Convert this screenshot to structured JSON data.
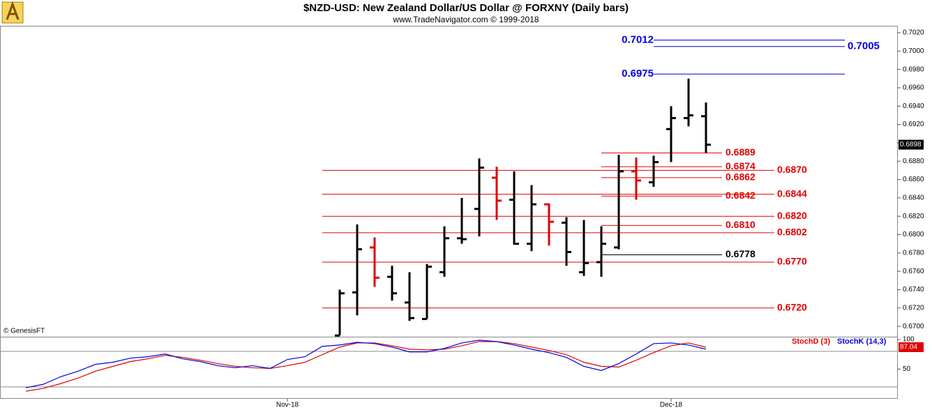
{
  "chart_data": [
    {
      "type": "ohlc",
      "title": "$NZD-USD:  New Zealand Dollar/US Dollar @ FORXNY  (Daily bars)",
      "subtitle": "www.TradeNavigator.com © 1999-2018",
      "credit": "© GenesisFT",
      "categories": [
        null,
        null,
        null,
        null,
        null,
        null,
        null,
        null,
        null,
        null,
        null,
        null,
        null,
        null,
        null,
        null,
        "Nov-18",
        null,
        null,
        null,
        null,
        null,
        null,
        null,
        null,
        null,
        null,
        null,
        null,
        null,
        null,
        null,
        null,
        null,
        null,
        null,
        null,
        null,
        "Dec-18",
        null,
        null,
        null,
        null,
        null,
        null,
        null,
        null,
        null,
        null,
        null,
        null
      ],
      "open": [
        null,
        null,
        null,
        null,
        null,
        null,
        null,
        null,
        null,
        null,
        null,
        null,
        null,
        null,
        null,
        null,
        null,
        null,
        null,
        0.669,
        0.6737,
        0.6786,
        0.6754,
        0.6726,
        0.6708,
        0.6759,
        0.6796,
        0.6828,
        0.6862,
        0.6838,
        0.679,
        0.6833,
        0.6813,
        0.6759,
        0.677,
        0.6786,
        0.6869,
        0.6857,
        0.6915,
        0.6927,
        0.6929,
        null,
        null,
        null,
        null,
        null,
        null,
        null,
        null,
        null,
        null
      ],
      "high": [
        null,
        null,
        null,
        null,
        null,
        null,
        null,
        null,
        null,
        null,
        null,
        null,
        null,
        null,
        null,
        null,
        null,
        null,
        null,
        0.674,
        0.6811,
        0.6797,
        0.6766,
        0.6759,
        0.6768,
        0.6809,
        0.684,
        0.6883,
        0.6874,
        0.6869,
        0.6854,
        0.6834,
        0.6819,
        0.6816,
        0.6809,
        0.6887,
        0.6884,
        0.6886,
        0.694,
        0.697,
        0.6944,
        null,
        null,
        null,
        null,
        null,
        null,
        null,
        null,
        null,
        null
      ],
      "low": [
        null,
        null,
        null,
        null,
        null,
        null,
        null,
        null,
        null,
        null,
        null,
        null,
        null,
        null,
        null,
        null,
        null,
        null,
        null,
        0.669,
        0.6712,
        0.6743,
        0.6728,
        0.6706,
        0.6708,
        0.6754,
        0.679,
        0.6798,
        0.6816,
        0.6789,
        0.6782,
        0.6788,
        0.6766,
        0.6755,
        0.6754,
        0.6784,
        0.6838,
        0.6852,
        0.6879,
        0.6918,
        0.6889,
        null,
        null,
        null,
        null,
        null,
        null,
        null,
        null,
        null,
        null
      ],
      "close": [
        null,
        null,
        null,
        null,
        null,
        null,
        null,
        null,
        null,
        null,
        null,
        null,
        null,
        null,
        null,
        null,
        null,
        null,
        null,
        0.6736,
        0.6784,
        0.6753,
        0.6736,
        0.6709,
        0.6765,
        0.6796,
        0.6795,
        0.6873,
        0.6837,
        0.679,
        0.6833,
        0.6814,
        0.6781,
        0.6769,
        0.679,
        0.6869,
        0.6859,
        0.6879,
        0.6927,
        0.693,
        0.6898,
        null,
        null,
        null,
        null,
        null,
        null,
        null,
        null,
        null,
        null
      ],
      "colors": [
        null,
        null,
        null,
        null,
        null,
        null,
        null,
        null,
        null,
        null,
        null,
        null,
        null,
        null,
        null,
        null,
        null,
        null,
        null,
        "#000000",
        "#000000",
        "#e00000",
        "#000000",
        "#000000",
        "#000000",
        "#000000",
        "#000000",
        "#000000",
        "#e00000",
        "#000000",
        "#000000",
        "#e00000",
        "#000000",
        "#000000",
        "#000000",
        "#000000",
        "#e00000",
        "#000000",
        "#000000",
        "#000000",
        "#000000",
        null,
        null,
        null,
        null,
        null,
        null,
        null,
        null,
        null,
        null
      ],
      "ylim": [
        0.6689,
        0.7027
      ],
      "yticks": [
        {
          "value": 0.67,
          "label": "0.6700"
        },
        {
          "value": 0.672,
          "label": "0.6720"
        },
        {
          "value": 0.674,
          "label": "0.6740"
        },
        {
          "value": 0.676,
          "label": "0.6760"
        },
        {
          "value": 0.678,
          "label": "0.6780"
        },
        {
          "value": 0.68,
          "label": "0.6800"
        },
        {
          "value": 0.682,
          "label": "0.6820"
        },
        {
          "value": 0.684,
          "label": "0.6840"
        },
        {
          "value": 0.686,
          "label": "0.6860"
        },
        {
          "value": 0.688,
          "label": "0.6880"
        },
        {
          "value": 0.69,
          "label": "0.6900"
        },
        {
          "value": 0.692,
          "label": "0.6920"
        },
        {
          "value": 0.694,
          "label": "0.6940"
        },
        {
          "value": 0.696,
          "label": "0.6960"
        },
        {
          "value": 0.698,
          "label": "0.6980"
        },
        {
          "value": 0.7,
          "label": "0.7000"
        },
        {
          "value": 0.702,
          "label": "0.7020"
        }
      ],
      "levels": [
        {
          "value": 0.7012,
          "color": "#0000e0"
        },
        {
          "value": 0.7005,
          "color": "#0000e0"
        },
        {
          "value": 0.6975,
          "color": "#0000e0"
        },
        {
          "value": 0.6889,
          "color": "#e00000"
        },
        {
          "value": 0.6874,
          "color": "#e00000"
        },
        {
          "value": 0.687,
          "label": "0.6870",
          "color": "#e00000"
        },
        {
          "value": 0.6862,
          "color": "#e00000"
        },
        {
          "value": 0.6844,
          "color": "#e00000"
        },
        {
          "value": 0.6842,
          "color": "#e00000"
        },
        {
          "value": 0.682,
          "label": "0.6820",
          "color": "#e00000"
        },
        {
          "value": 0.681,
          "label": "0.6810",
          "color": "#e00000"
        },
        {
          "value": 0.6802,
          "color": "#e00000"
        },
        {
          "value": 0.6778,
          "color": "#000000"
        },
        {
          "value": 0.677,
          "label": "0.6770",
          "color": "#e00000"
        },
        {
          "value": 0.672,
          "label": "0.6720",
          "color": "#e00000"
        }
      ]
    },
    {
      "type": "line",
      "series": [
        {
          "name": "StochD (3)",
          "color": "#e00000",
          "values": [
            null,
            12.8,
            17.4,
            25.6,
            34.9,
            46.5,
            54.7,
            62.8,
            67.4,
            73.3,
            69.8,
            65.1,
            59.3,
            54.7,
            52.3,
            51.2,
            55.8,
            61.6,
            74.4,
            87.2,
            94.2,
            94.2,
            89.5,
            83.7,
            82.6,
            83.7,
            89.5,
            96.5,
            96.5,
            93.0,
            87.2,
            81.4,
            74.4,
            61.6,
            54.7,
            53.5,
            65.1,
            77.9,
            89.5,
            94.2,
            87.04,
            null,
            null,
            null,
            null,
            null,
            null,
            null,
            null,
            null,
            null
          ]
        },
        {
          "name": "StochK (14,3)",
          "color": "#0000e0",
          "values": [
            null,
            18.6,
            24.4,
            37.2,
            46.5,
            58.1,
            61.6,
            68.6,
            70.9,
            75.6,
            67.4,
            62.8,
            55.8,
            52.3,
            55.8,
            51.2,
            66.3,
            70.9,
            88.4,
            90.7,
            95.3,
            93.0,
            87.2,
            79.1,
            79.1,
            84.9,
            94.2,
            98.8,
            96.5,
            90.7,
            83.7,
            77.9,
            69.8,
            54.7,
            47.7,
            59.3,
            75.6,
            93.0,
            94.2,
            90.7,
            83.7,
            null,
            null,
            null,
            null,
            null,
            null,
            null,
            null,
            null,
            null
          ]
        }
      ],
      "ylim": [
        0,
        100
      ],
      "yticks": [
        50,
        100
      ],
      "levels": [
        20,
        80
      ]
    }
  ]
}
